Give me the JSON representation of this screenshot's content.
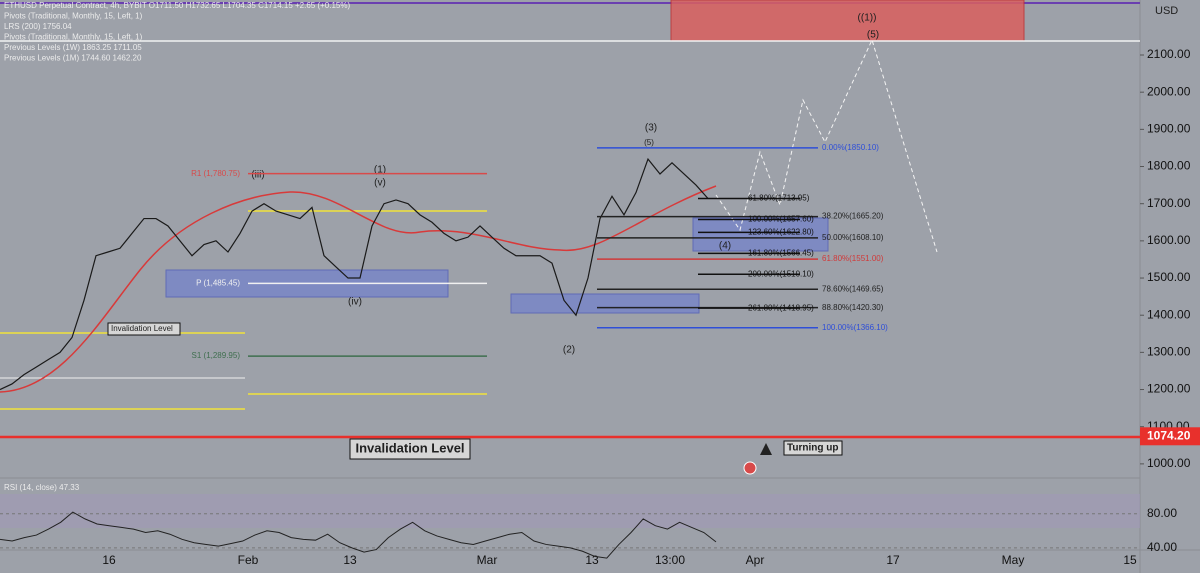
{
  "header": {
    "lines": [
      "ETHUSD Perpetual Contract, 4h, BYBIT  O1711.50  H1732.65  L1704.35  C1714.15  +2.65 (+0.15%)",
      "Pivots (Traditional, Monthly, 15, Left, 1)",
      "LRS (200)  1756.04",
      "Pivots (Traditional, Monthly, 15, Left, 1)",
      "Previous Levels (1W)  1863.25  1711.05",
      "Previous Levels (1M)  1744.60  1462.20"
    ]
  },
  "price_axis": {
    "unit": "USD",
    "ylim": [
      962,
      2248
    ],
    "ticks": [
      {
        "value": 1000,
        "label": "1000.00"
      },
      {
        "value": 1100,
        "label": "1100.00"
      },
      {
        "value": 1200,
        "label": "1200.00"
      },
      {
        "value": 1300,
        "label": "1300.00"
      },
      {
        "value": 1400,
        "label": "1400.00"
      },
      {
        "value": 1500,
        "label": "1500.00"
      },
      {
        "value": 1600,
        "label": "1600.00"
      },
      {
        "value": 1700,
        "label": "1700.00"
      },
      {
        "value": 1800,
        "label": "1800.00"
      },
      {
        "value": 1900,
        "label": "1900.00"
      },
      {
        "value": 2000,
        "label": "2000.00"
      },
      {
        "value": 2100,
        "label": "2100.00"
      }
    ],
    "tag": {
      "value": 1074.2,
      "label": "1074.20"
    }
  },
  "time_axis": {
    "labels": [
      "16",
      "Feb",
      "13",
      "Mar",
      "13",
      "13:00",
      "Apr",
      "17",
      "May",
      "15"
    ]
  },
  "price": {
    "color": "#1a1a1a",
    "values": [
      1200,
      1215,
      1240,
      1260,
      1280,
      1300,
      1340,
      1440,
      1560,
      1570,
      1580,
      1620,
      1660,
      1660,
      1640,
      1600,
      1560,
      1590,
      1600,
      1570,
      1620,
      1680,
      1700,
      1680,
      1670,
      1660,
      1690,
      1560,
      1530,
      1500,
      1500,
      1640,
      1700,
      1710,
      1700,
      1670,
      1650,
      1620,
      1600,
      1610,
      1640,
      1610,
      1580,
      1560,
      1560,
      1560,
      1540,
      1440,
      1400,
      1500,
      1660,
      1720,
      1670,
      1730,
      1820,
      1780,
      1810,
      1780,
      1750,
      1714
    ]
  },
  "rsi": {
    "label": "RSI (14, close)  47.33",
    "color": "#222",
    "ylim": [
      14,
      122
    ],
    "ticks": [
      {
        "value": 80,
        "label": "80.00"
      },
      {
        "value": 40,
        "label": "40.00"
      }
    ],
    "values": [
      50,
      48,
      52,
      55,
      62,
      70,
      82,
      74,
      68,
      66,
      64,
      62,
      58,
      60,
      56,
      50,
      46,
      44,
      42,
      45,
      48,
      55,
      60,
      58,
      52,
      50,
      49,
      56,
      46,
      40,
      35,
      38,
      52,
      62,
      70,
      60,
      54,
      50,
      46,
      44,
      48,
      52,
      56,
      58,
      48,
      44,
      42,
      40,
      36,
      30,
      28,
      44,
      58,
      74,
      66,
      62,
      70,
      64,
      58,
      47
    ]
  },
  "pivots": [
    {
      "label": "R1 (1,780.75)",
      "value": 1780.75,
      "color": "#d84a4a"
    },
    {
      "label": "P (1,485.45)",
      "value": 1485.45,
      "color": "#f0f0f0"
    },
    {
      "label": "S1 (1,289.95)",
      "value": 1289.95,
      "color": "#3f6f4f"
    }
  ],
  "fib_retracement": [
    {
      "label": "0.00%(1850.10)",
      "value": 1850.1,
      "color": "#2f4fd8"
    },
    {
      "label": "38.20%(1665.20)",
      "value": 1665.2,
      "color": "#222222"
    },
    {
      "label": "50.00%(1608.10)",
      "value": 1608.1,
      "color": "#222222"
    },
    {
      "label": "61.80%(1551.00)",
      "value": 1551,
      "color": "#d03a3a"
    },
    {
      "label": "78.60%(1469.65)",
      "value": 1469.65,
      "color": "#222222"
    },
    {
      "label": "88.80%(1420.30)",
      "value": 1420.3,
      "color": "#222222"
    },
    {
      "label": "100.00%(1366.10)",
      "value": 1366.1,
      "color": "#2f4fd8"
    }
  ],
  "fib_extension": [
    {
      "label": "61.80%(1713.95)",
      "value": 1713.95,
      "color": "#111111"
    },
    {
      "label": "100.00%(1657.60)",
      "value": 1657.6,
      "color": "#111111"
    },
    {
      "label": "123.60%(1622.80)",
      "value": 1622.8,
      "color": "#111111"
    },
    {
      "label": "161.80%(1566.45)",
      "value": 1566.45,
      "color": "#111111"
    },
    {
      "label": "200.00%(1510.10)",
      "value": 1510.1,
      "color": "#111111"
    },
    {
      "label": "261.80%(1418.95)",
      "value": 1418.95,
      "color": "#111111"
    }
  ],
  "annotations": {
    "invalidation_small": "Invalidation Level",
    "invalidation_big": "Invalidation Level",
    "turning_up": "Turning up",
    "waves": [
      "(iii)",
      "(iv)",
      "(v)",
      "(1)",
      "(2)",
      "(3)",
      "(4)",
      "(5)",
      "((1))",
      "(5)"
    ]
  }
}
